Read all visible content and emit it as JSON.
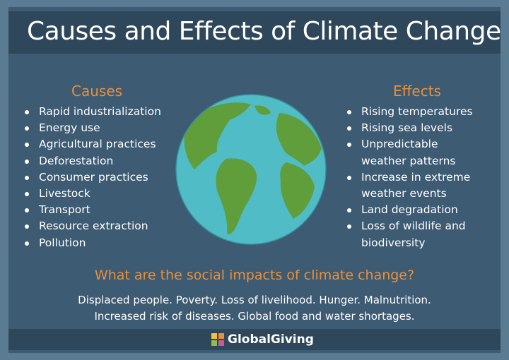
{
  "header": {
    "title": "Causes and Effects of Climate Change"
  },
  "causes": {
    "heading": "Causes",
    "items": [
      "Rapid industrialization",
      "Energy use",
      "Agricultural practices",
      "Deforestation",
      "Consumer practices",
      "Livestock",
      "Transport",
      "Resource extraction",
      "Pollution"
    ]
  },
  "effects": {
    "heading": "Effects",
    "items": [
      [
        "Rising temperatures"
      ],
      [
        "Rising sea levels"
      ],
      [
        "Unpredictable",
        "weather patterns"
      ],
      [
        "Increase in extreme",
        "weather events"
      ],
      [
        "Land degradation"
      ],
      [
        "Loss of wildlife and",
        "biodiversity"
      ]
    ]
  },
  "social": {
    "question": "What are the social impacts of climate change?",
    "lines": [
      "Displaced people. Poverty. Loss of livelihood. Hunger. Malnutrition.",
      "Increased risk of diseases. Global food and water shortages."
    ]
  },
  "footer": {
    "brand": "GlobalGiving"
  }
}
